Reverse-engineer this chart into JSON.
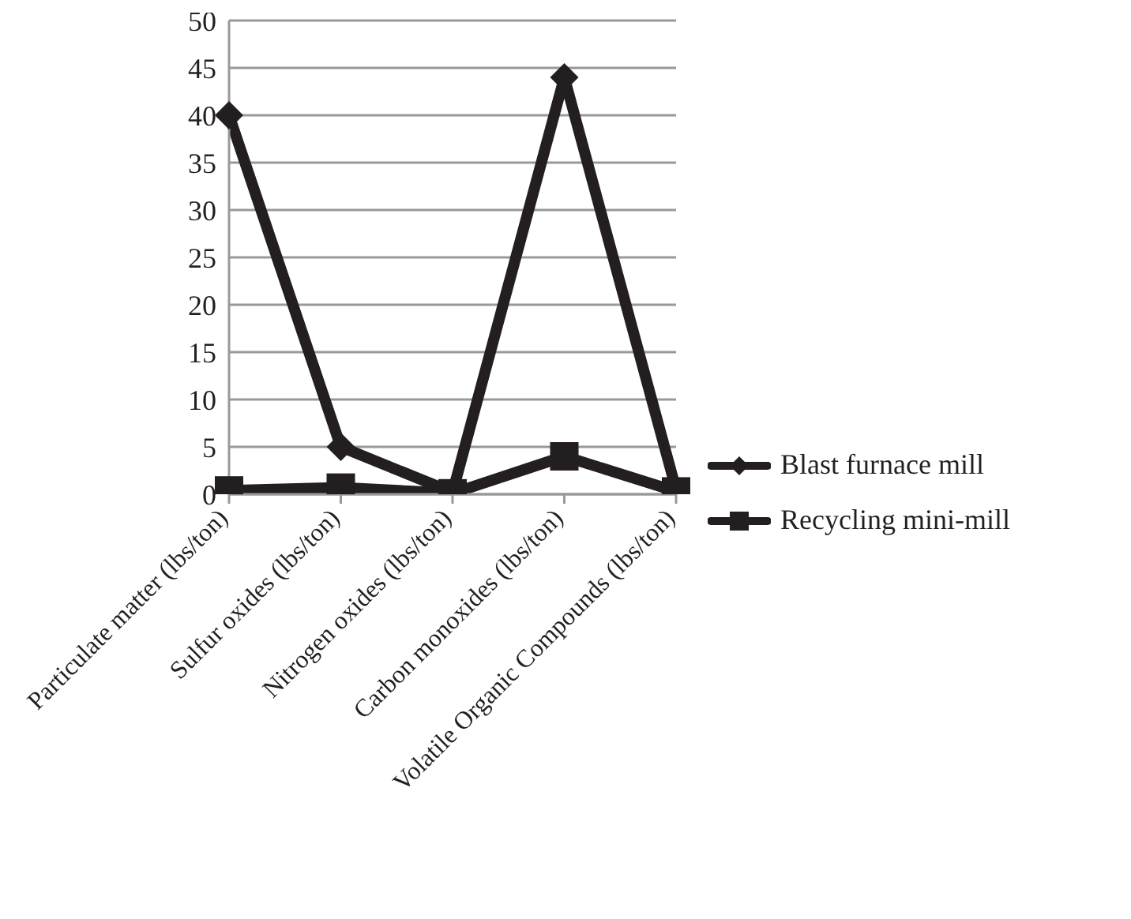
{
  "chart_data": {
    "type": "line",
    "categories": [
      "Particulate matter (lbs/ton)",
      "Sulfur oxides (lbs/ton)",
      "Nitrogen oxides (lbs/ton)",
      "Carbon monoxides (lbs/ton)",
      "Volatile Organic Compounds (lbs/ton)"
    ],
    "series": [
      {
        "name": "Blast furnace mill",
        "color": "#231f20",
        "marker": "diamond",
        "values": [
          40,
          5,
          0.2,
          44,
          0.5
        ]
      },
      {
        "name": "Recycling mini-mill",
        "color": "#231f20",
        "marker": "square",
        "values": [
          0.4,
          0.7,
          0.1,
          4,
          0.3
        ]
      }
    ],
    "ylim": [
      0,
      50
    ],
    "yticks": [
      0,
      5,
      10,
      15,
      20,
      25,
      30,
      35,
      40,
      45,
      50
    ],
    "grid": "y",
    "legend": "right"
  }
}
